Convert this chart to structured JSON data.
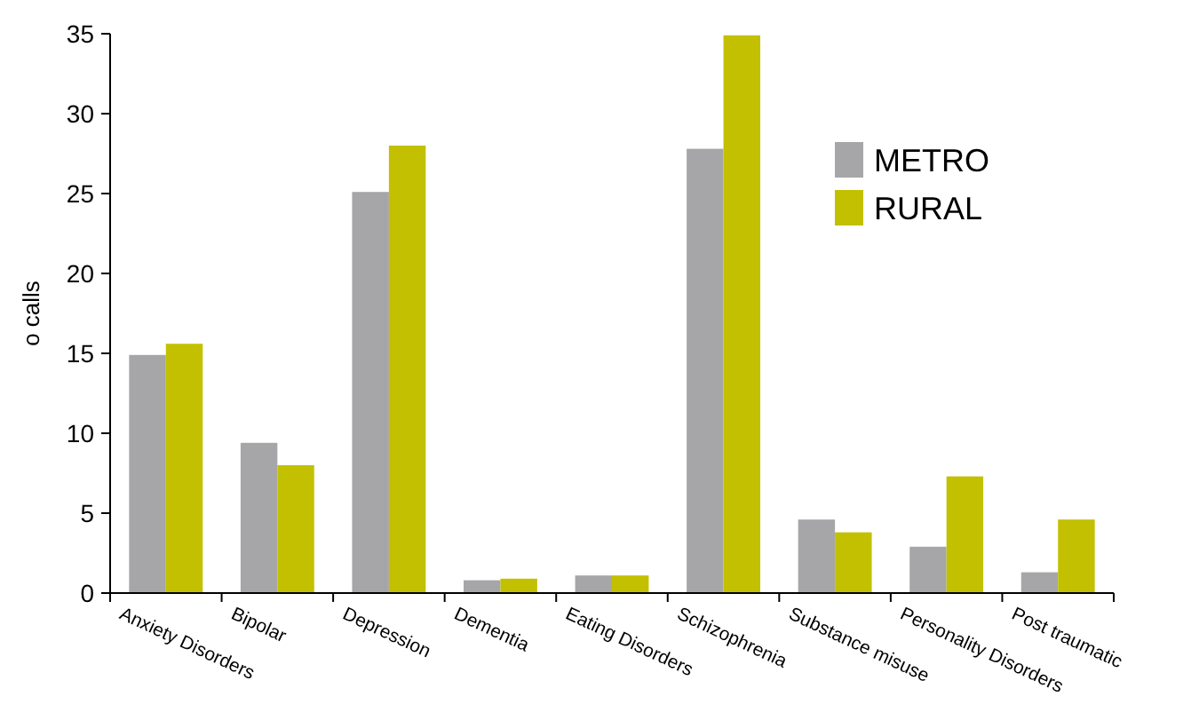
{
  "chart_data": {
    "type": "bar",
    "ylabel": "o calls",
    "categories": [
      "Anxiety Disorders",
      "Bipolar",
      "Depression",
      "Dementia",
      "Eating Disorders",
      "Schizophrenia",
      "Substance misuse",
      "Personality Disorders",
      "Post traumatic"
    ],
    "series": [
      {
        "name": "METRO",
        "color": "#a6a6a8",
        "values": [
          14.9,
          9.4,
          25.1,
          0.8,
          1.1,
          27.8,
          4.6,
          2.9,
          1.3
        ]
      },
      {
        "name": "RURAL",
        "color": "#c2c000",
        "values": [
          15.6,
          8.0,
          28.0,
          0.9,
          1.1,
          34.9,
          3.8,
          7.3,
          4.6
        ]
      }
    ],
    "ylim": [
      0,
      35
    ],
    "yticks": [
      0,
      5,
      10,
      15,
      20,
      25,
      30,
      35
    ],
    "grid": false,
    "legend": "top right"
  }
}
